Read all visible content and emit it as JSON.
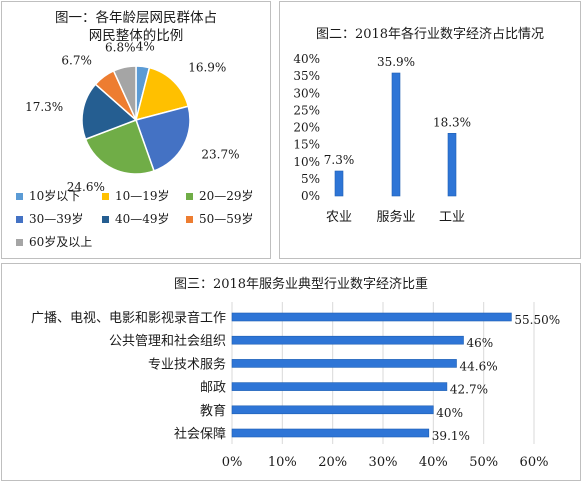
{
  "charts": [
    {
      "type": "pie",
      "title": "图一：各年龄层网民群体占网民整体的比例",
      "title_lines": [
        "图一：各年龄层网民群体占",
        "网民整体的比例"
      ],
      "slices": [
        {
          "label": "10岁以下",
          "value": 4,
          "display": "4%",
          "color": "#5b9bd5"
        },
        {
          "label": "10—19岁",
          "value": 16.9,
          "display": "16.9%",
          "color": "#ffc000"
        },
        {
          "label": "30—39岁",
          "value": 23.7,
          "display": "23.7%",
          "color": "#4472c4"
        },
        {
          "label": "20—29岁",
          "value": 24.6,
          "display": "24.6%",
          "color": "#70ad47"
        },
        {
          "label": "40—49岁",
          "value": 17.3,
          "display": "17.3%",
          "color": "#255e91"
        },
        {
          "label": "50—59岁",
          "value": 6.7,
          "display": "6.7%",
          "color": "#ed7d31"
        },
        {
          "label": "60岁及以上",
          "value": 6.8,
          "display": "6.8%",
          "color": "#a5a5a5"
        }
      ],
      "legend": [
        {
          "label": "10岁以下",
          "color": "#5b9bd5"
        },
        {
          "label": "10—19岁",
          "color": "#ffc000"
        },
        {
          "label": "20—29岁",
          "color": "#70ad47"
        },
        {
          "label": "30—39岁",
          "color": "#4472c4"
        },
        {
          "label": "40—49岁",
          "color": "#255e91"
        },
        {
          "label": "50—59岁",
          "color": "#ed7d31"
        },
        {
          "label": "60岁及以上",
          "color": "#a5a5a5"
        }
      ]
    },
    {
      "type": "bar",
      "title": "图二：2018年各行业数字经济占比情况",
      "categories": [
        "农业",
        "服务业",
        "工业"
      ],
      "values": [
        7.3,
        35.9,
        18.3
      ],
      "data_labels": [
        "7.3%",
        "35.9%",
        "18.3%"
      ],
      "ylim": [
        0,
        40
      ],
      "yticks": [
        "0%",
        "5%",
        "10%",
        "15%",
        "20%",
        "25%",
        "30%",
        "35%",
        "40%"
      ],
      "color": "#2e75d6",
      "grid": false
    },
    {
      "type": "bar",
      "orientation": "horizontal",
      "title": "图三：2018年服务业典型行业数字经济比重",
      "categories": [
        "广播、电视、电影和影视录音工作",
        "公共管理和社会组织",
        "专业技术服务",
        "邮政",
        "教育",
        "社会保障"
      ],
      "values": [
        55.5,
        46,
        44.6,
        42.7,
        40,
        39.1
      ],
      "data_labels": [
        "55.50%",
        "46%",
        "44.6%",
        "42.7%",
        "40%",
        "39.1%"
      ],
      "xlim": [
        0,
        60
      ],
      "xticks": [
        "0%",
        "10%",
        "20%",
        "30%",
        "40%",
        "50%",
        "60%"
      ],
      "color": "#2e75d6",
      "grid": true
    }
  ]
}
